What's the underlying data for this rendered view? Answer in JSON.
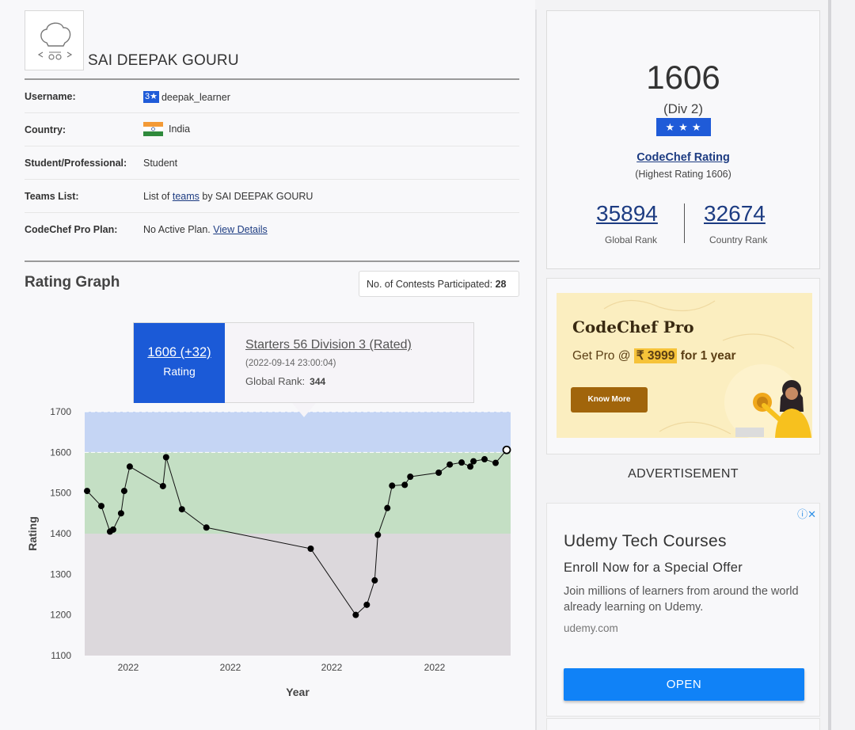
{
  "profile": {
    "name": "SAI DEEPAK GOURU",
    "rows": [
      {
        "label": "Username:",
        "badge": "3★",
        "value": "deepak_learner"
      },
      {
        "label": "Country:",
        "value": "India"
      },
      {
        "label": "Student/Professional:",
        "value": "Student"
      },
      {
        "label": "Teams List:",
        "prefix": "List of",
        "link": "teams",
        "suffix": "by SAI DEEPAK GOURU"
      },
      {
        "label": "CodeChef Pro Plan:",
        "prefix": "No Active Plan.",
        "link": "View Details"
      }
    ]
  },
  "graph": {
    "title": "Rating Graph",
    "contests_label": "No. of Contests Participated:",
    "contests_count": "28",
    "tooltip": {
      "rating": "1606 (+32)",
      "rating_label": "Rating",
      "contest": "Starters 56 Division 3 (Rated)",
      "date": "(2022-09-14 23:00:04)",
      "rank_label": "Global Rank:",
      "rank": "344"
    }
  },
  "chart_data": {
    "type": "line",
    "xlabel": "Year",
    "ylabel": "Rating",
    "ylim": [
      1100,
      1700
    ],
    "y_ticks": [
      "1700",
      "1600",
      "1500",
      "1400",
      "1300",
      "1200",
      "1100"
    ],
    "x_ticks": [
      "2022",
      "2022",
      "2022",
      "2022"
    ],
    "bands": [
      {
        "from": 1600,
        "to": 1700,
        "color": "#c5d5f4"
      },
      {
        "from": 1400,
        "to": 1600,
        "color": "#c4dfc4"
      },
      {
        "from": 1100,
        "to": 1400,
        "color": "#dcd8dc"
      }
    ],
    "series": [
      {
        "values": [
          1505,
          1468,
          1405,
          1410,
          1450,
          1505,
          1565,
          1517,
          1588,
          1460,
          1415,
          1363,
          1200,
          1225,
          1285,
          1397,
          1463,
          1518,
          1520,
          1540,
          1550,
          1570,
          1575,
          1565,
          1578,
          1583,
          1574,
          1606
        ],
        "x_index": [
          0,
          18,
          29,
          33,
          43,
          47,
          54,
          96,
          100,
          120,
          151,
          283,
          340,
          354,
          364,
          368,
          380,
          386,
          402,
          409,
          445,
          459,
          474,
          485,
          489,
          503,
          517,
          531
        ]
      }
    ]
  },
  "rating_card": {
    "rating": "1606",
    "division": "(Div 2)",
    "stars": "★★★",
    "rating_link": "CodeChef Rating",
    "highest": "(Highest Rating 1606)",
    "global_rank": "35894",
    "global_rank_label": "Global Rank",
    "country_rank": "32674",
    "country_rank_label": "Country Rank"
  },
  "promo": {
    "title": "CodeChef Pro",
    "line_prefix": "Get Pro @",
    "price": "₹ 3999",
    "line_suffix": "for 1 year",
    "button": "Know More"
  },
  "ad": {
    "section_label": "ADVERTISEMENT",
    "choices": "ⓘ✕",
    "title": "Udemy Tech Courses",
    "subtitle": "Enroll Now for a Special Offer",
    "description": "Join millions of learners from around the world already learning on Udemy.",
    "url": "udemy.com",
    "button": "OPEN"
  }
}
